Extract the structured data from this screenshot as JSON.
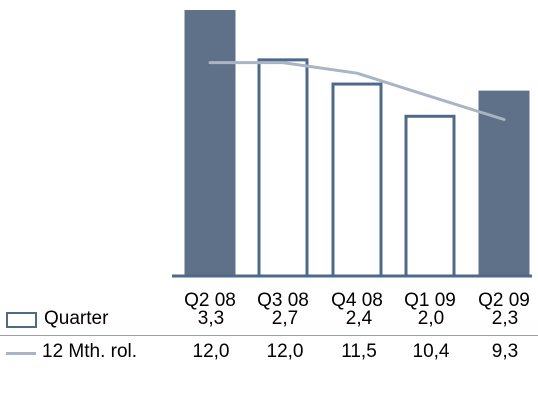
{
  "chart_data": {
    "type": "bar",
    "categories": [
      "Q2 08",
      "Q3 08",
      "Q4 08",
      "Q1 09",
      "Q2 09"
    ],
    "series": [
      {
        "name": "Quarter",
        "type": "bar",
        "values": [
          3.3,
          2.7,
          2.4,
          2.0,
          2.3
        ],
        "labels": [
          "3,3",
          "2,7",
          "2,4",
          "2,0",
          "2,3"
        ],
        "highlighted": [
          true,
          false,
          false,
          false,
          true
        ]
      },
      {
        "name": "12 Mth. rol.",
        "type": "line",
        "values": [
          12.0,
          12.0,
          11.5,
          10.4,
          9.3
        ],
        "labels": [
          "12,0",
          "12,0",
          "11,5",
          "10,4",
          "9,3"
        ]
      }
    ],
    "colors": {
      "bar_fill_highlight": "#5f7189",
      "bar_outline": "#4f6a88",
      "line": "#a9b4c4",
      "axis": "#4f6a88"
    },
    "legend": "table-below",
    "grid": false
  }
}
